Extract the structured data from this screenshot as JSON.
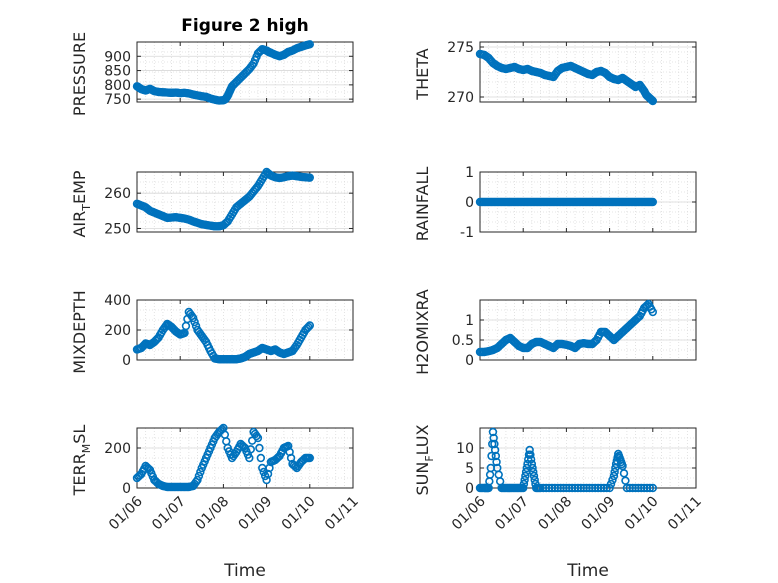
{
  "figure": {
    "title": "Figure 2 high"
  },
  "chart_data": [
    {
      "type": "scatter",
      "ylabel": "PRESSURE",
      "title": "Figure 2 high",
      "ylim": [
        740,
        950
      ],
      "yticks": [
        750,
        800,
        850,
        900
      ],
      "ytick_labels": [
        "750",
        "800",
        "850",
        "900"
      ],
      "xlim": [
        0,
        5
      ],
      "xticks": [
        0,
        1,
        2,
        3,
        4,
        5
      ],
      "xtick_labels": [],
      "xlabel": "",
      "x": [
        0,
        0.05,
        0.1,
        0.2,
        0.3,
        0.4,
        0.5,
        0.6,
        0.7,
        0.8,
        0.9,
        1.0,
        1.1,
        1.2,
        1.3,
        1.4,
        1.5,
        1.6,
        1.7,
        1.8,
        1.9,
        2.0,
        2.05,
        2.1,
        2.15,
        2.2,
        2.3,
        2.4,
        2.5,
        2.6,
        2.7,
        2.8,
        2.9,
        3.0,
        3.05,
        3.1,
        3.2,
        3.3,
        3.4,
        3.5,
        3.6,
        3.7,
        3.8,
        3.9,
        4.0
      ],
      "y": [
        795,
        790,
        785,
        780,
        786,
        778,
        775,
        774,
        773,
        772,
        773,
        771,
        772,
        770,
        766,
        763,
        760,
        758,
        752,
        748,
        745,
        746,
        750,
        762,
        778,
        795,
        810,
        825,
        840,
        855,
        875,
        910,
        925,
        920,
        915,
        912,
        905,
        900,
        905,
        915,
        920,
        928,
        933,
        938,
        942
      ]
    },
    {
      "type": "scatter",
      "ylabel": "THETA",
      "ylim": [
        269.5,
        275.5
      ],
      "yticks": [
        270,
        275
      ],
      "ytick_labels": [
        "270",
        "275"
      ],
      "xlim": [
        0,
        5
      ],
      "xticks": [
        0,
        1,
        2,
        3,
        4,
        5
      ],
      "xtick_labels": [],
      "xlabel": "",
      "x": [
        0,
        0.1,
        0.2,
        0.3,
        0.4,
        0.5,
        0.6,
        0.7,
        0.8,
        0.9,
        1.0,
        1.1,
        1.2,
        1.3,
        1.4,
        1.5,
        1.6,
        1.7,
        1.8,
        1.9,
        2.0,
        2.1,
        2.2,
        2.3,
        2.4,
        2.5,
        2.6,
        2.7,
        2.8,
        2.9,
        3.0,
        3.1,
        3.2,
        3.3,
        3.4,
        3.5,
        3.6,
        3.7,
        3.8,
        3.85,
        3.9,
        3.95,
        4.0
      ],
      "y": [
        274.3,
        274.2,
        273.9,
        273.4,
        273.1,
        272.9,
        272.8,
        272.9,
        273.0,
        272.8,
        272.7,
        272.8,
        272.6,
        272.5,
        272.4,
        272.2,
        272.1,
        272.0,
        272.6,
        272.9,
        273.0,
        273.1,
        272.9,
        272.7,
        272.5,
        272.3,
        272.2,
        272.5,
        272.6,
        272.4,
        272.0,
        271.8,
        271.7,
        271.9,
        271.6,
        271.3,
        271.0,
        271.2,
        270.6,
        270.2,
        270.0,
        269.8,
        269.6
      ]
    },
    {
      "type": "scatter",
      "ylabel": "AIR_TEMP",
      "ylim": [
        249,
        266
      ],
      "yticks": [
        250,
        260
      ],
      "ytick_labels": [
        "250",
        "260"
      ],
      "xlim": [
        0,
        5
      ],
      "xticks": [
        0,
        1,
        2,
        3,
        4,
        5
      ],
      "xtick_labels": [],
      "xlabel": "",
      "x": [
        0,
        0.1,
        0.2,
        0.3,
        0.4,
        0.5,
        0.6,
        0.7,
        0.8,
        0.9,
        1.0,
        1.1,
        1.2,
        1.3,
        1.4,
        1.5,
        1.6,
        1.7,
        1.8,
        1.9,
        2.0,
        2.1,
        2.2,
        2.3,
        2.4,
        2.5,
        2.6,
        2.7,
        2.8,
        2.9,
        3.0,
        3.1,
        3.2,
        3.3,
        3.4,
        3.5,
        3.6,
        3.7,
        3.8,
        3.9,
        4.0
      ],
      "y": [
        257,
        256.5,
        256,
        255,
        254.5,
        254,
        253.5,
        253,
        253.1,
        253.2,
        253,
        252.8,
        252.5,
        252,
        251.6,
        251.2,
        251,
        250.8,
        250.6,
        250.6,
        250.9,
        252,
        254,
        256,
        257,
        258,
        259,
        260.5,
        262,
        264,
        266,
        265,
        264.5,
        264.3,
        264.5,
        264.8,
        265,
        264.8,
        264.6,
        264.5,
        264.4
      ]
    },
    {
      "type": "scatter",
      "ylabel": "RAINFALL",
      "ylim": [
        -1,
        1
      ],
      "yticks": [
        -1,
        0,
        1
      ],
      "ytick_labels": [
        "-1",
        "0",
        "1"
      ],
      "xlim": [
        0,
        5
      ],
      "xticks": [
        0,
        1,
        2,
        3,
        4,
        5
      ],
      "xtick_labels": [],
      "xlabel": "",
      "x": [
        0,
        0.1,
        0.2,
        0.3,
        0.4,
        0.5,
        0.6,
        0.7,
        0.8,
        0.9,
        1.0,
        1.1,
        1.2,
        1.3,
        1.4,
        1.5,
        1.6,
        1.7,
        1.8,
        1.9,
        2.0,
        2.1,
        2.2,
        2.3,
        2.4,
        2.5,
        2.6,
        2.7,
        2.8,
        2.9,
        3.0,
        3.1,
        3.2,
        3.3,
        3.4,
        3.5,
        3.6,
        3.7,
        3.8,
        3.9,
        4.0
      ],
      "y": [
        0,
        0,
        0,
        0,
        0,
        0,
        0,
        0,
        0,
        0,
        0,
        0,
        0,
        0,
        0,
        0,
        0,
        0,
        0,
        0,
        0,
        0,
        0,
        0,
        0,
        0,
        0,
        0,
        0,
        0,
        0,
        0,
        0,
        0,
        0,
        0,
        0,
        0,
        0,
        0,
        0
      ]
    },
    {
      "type": "scatter",
      "ylabel": "MIXDEPTH",
      "ylim": [
        0,
        400
      ],
      "yticks": [
        0,
        200,
        400
      ],
      "ytick_labels": [
        "0",
        "200",
        "400"
      ],
      "xlim": [
        0,
        5
      ],
      "xticks": [
        0,
        1,
        2,
        3,
        4,
        5
      ],
      "xtick_labels": [],
      "xlabel": "",
      "x": [
        0,
        0.1,
        0.2,
        0.3,
        0.4,
        0.5,
        0.6,
        0.7,
        0.8,
        0.9,
        1.0,
        1.1,
        1.2,
        1.3,
        1.4,
        1.5,
        1.6,
        1.7,
        1.8,
        1.9,
        2.0,
        2.1,
        2.2,
        2.3,
        2.4,
        2.5,
        2.6,
        2.7,
        2.8,
        2.9,
        3.0,
        3.1,
        3.2,
        3.3,
        3.4,
        3.5,
        3.6,
        3.7,
        3.8,
        3.9,
        4.0
      ],
      "y": [
        70,
        80,
        110,
        100,
        120,
        150,
        200,
        240,
        220,
        190,
        170,
        180,
        320,
        280,
        200,
        160,
        120,
        60,
        10,
        5,
        5,
        5,
        5,
        5,
        10,
        20,
        40,
        50,
        60,
        80,
        70,
        60,
        70,
        50,
        40,
        50,
        60,
        100,
        150,
        200,
        230
      ]
    },
    {
      "type": "scatter",
      "ylabel": "H2OMIXRA",
      "ylim": [
        0,
        1.5
      ],
      "yticks": [
        0,
        0.5,
        1
      ],
      "ytick_labels": [
        "0",
        "0.5",
        "1"
      ],
      "xlim": [
        0,
        5
      ],
      "xticks": [
        0,
        1,
        2,
        3,
        4,
        5
      ],
      "xtick_labels": [],
      "xlabel": "",
      "x": [
        0,
        0.1,
        0.2,
        0.3,
        0.4,
        0.5,
        0.6,
        0.7,
        0.8,
        0.9,
        1.0,
        1.1,
        1.2,
        1.3,
        1.4,
        1.5,
        1.6,
        1.7,
        1.8,
        1.9,
        2.0,
        2.1,
        2.2,
        2.3,
        2.4,
        2.5,
        2.6,
        2.7,
        2.8,
        2.9,
        3.0,
        3.1,
        3.2,
        3.3,
        3.4,
        3.5,
        3.6,
        3.7,
        3.8,
        3.9,
        4.0
      ],
      "y": [
        0.2,
        0.2,
        0.22,
        0.25,
        0.3,
        0.4,
        0.5,
        0.55,
        0.45,
        0.35,
        0.3,
        0.3,
        0.4,
        0.45,
        0.45,
        0.4,
        0.35,
        0.3,
        0.4,
        0.4,
        0.38,
        0.35,
        0.3,
        0.4,
        0.42,
        0.4,
        0.4,
        0.5,
        0.7,
        0.7,
        0.6,
        0.5,
        0.6,
        0.7,
        0.8,
        0.9,
        1.0,
        1.1,
        1.3,
        1.4,
        1.2
      ]
    },
    {
      "type": "scatter",
      "ylabel": "TERR_MSL",
      "ylim": [
        0,
        300
      ],
      "yticks": [
        0,
        200
      ],
      "ytick_labels": [
        "0",
        "200"
      ],
      "xlim": [
        0,
        5
      ],
      "xticks": [
        0,
        1,
        2,
        3,
        4,
        5
      ],
      "xtick_labels": [
        "01/06",
        "01/07",
        "01/08",
        "01/09",
        "01/10",
        "01/11"
      ],
      "xlabel": "Time",
      "x": [
        0,
        0.1,
        0.2,
        0.3,
        0.4,
        0.5,
        0.6,
        0.7,
        0.8,
        0.9,
        1.0,
        1.1,
        1.2,
        1.3,
        1.4,
        1.5,
        1.6,
        1.7,
        1.8,
        1.9,
        2.0,
        2.1,
        2.2,
        2.3,
        2.4,
        2.5,
        2.6,
        2.7,
        2.8,
        2.9,
        3.0,
        3.1,
        3.2,
        3.3,
        3.4,
        3.5,
        3.6,
        3.7,
        3.8,
        3.9,
        4.0
      ],
      "y": [
        50,
        70,
        110,
        90,
        40,
        20,
        10,
        5,
        5,
        5,
        5,
        5,
        5,
        10,
        40,
        100,
        150,
        200,
        250,
        280,
        300,
        200,
        150,
        180,
        220,
        200,
        150,
        280,
        250,
        100,
        40,
        130,
        140,
        160,
        200,
        210,
        120,
        100,
        130,
        150,
        150
      ]
    },
    {
      "type": "scatter",
      "ylabel": "SUN_FLUX",
      "ylim": [
        0,
        15
      ],
      "yticks": [
        0,
        5,
        10
      ],
      "ytick_labels": [
        "0",
        "5",
        "10"
      ],
      "xlim": [
        0,
        5
      ],
      "xticks": [
        0,
        1,
        2,
        3,
        4,
        5
      ],
      "xtick_labels": [
        "01/06",
        "01/07",
        "01/08",
        "01/09",
        "01/10",
        "01/11"
      ],
      "xlabel": "Time",
      "x": [
        0,
        0.1,
        0.15,
        0.2,
        0.25,
        0.3,
        0.35,
        0.4,
        0.5,
        0.6,
        0.7,
        0.8,
        0.9,
        1.0,
        1.05,
        1.1,
        1.15,
        1.2,
        1.25,
        1.3,
        1.4,
        1.6,
        1.8,
        2.0,
        2.2,
        2.4,
        2.6,
        2.8,
        3.0,
        3.1,
        3.15,
        3.2,
        3.25,
        3.3,
        3.4,
        3.6,
        3.8,
        4.0
      ],
      "y": [
        0,
        0,
        0,
        0,
        5,
        14,
        9.5,
        5,
        0,
        0,
        0,
        0,
        0,
        0,
        3,
        6,
        9.5,
        6,
        3,
        0,
        0,
        0,
        0,
        0,
        0,
        0,
        0,
        0,
        0,
        3,
        6,
        8.5,
        7,
        5.5,
        0,
        0,
        0,
        0
      ]
    }
  ],
  "colors": {
    "marker": "#0072BD",
    "grid": "#dcdcdc",
    "axis": "#262626"
  }
}
